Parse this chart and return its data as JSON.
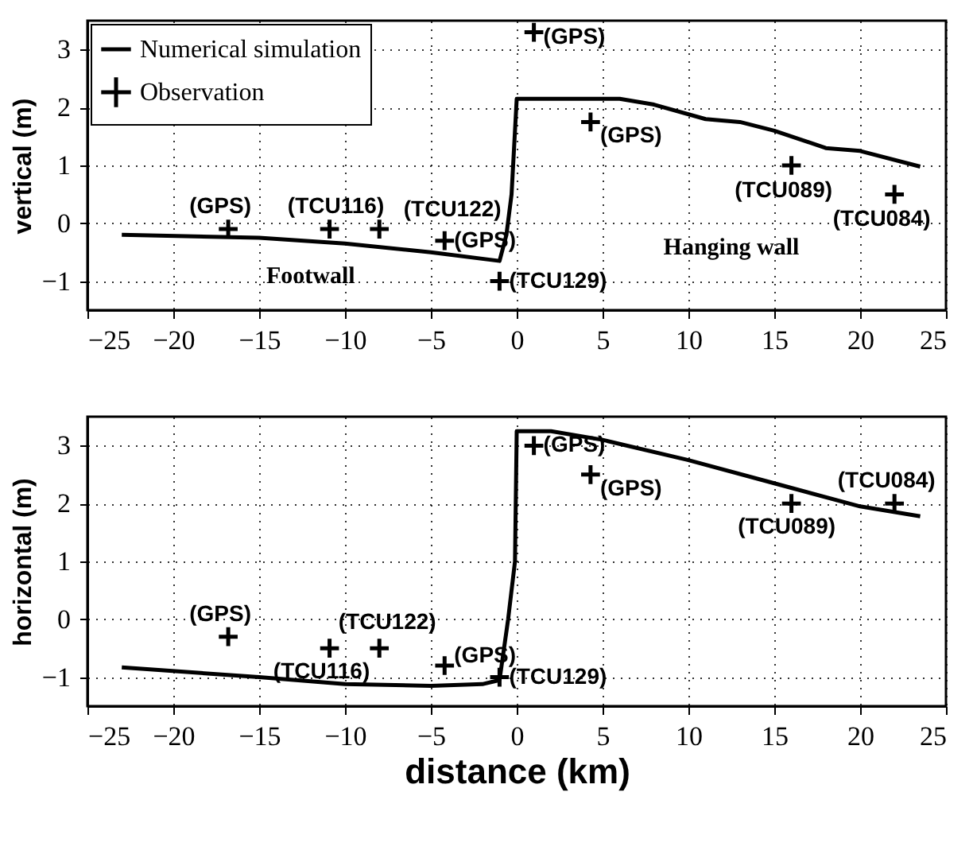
{
  "chart_data": [
    {
      "type": "line",
      "ylabel": "vertical (m)",
      "xlim": [
        -25,
        25
      ],
      "xticks": [
        -25,
        -20,
        -15,
        -10,
        -5,
        0,
        5,
        10,
        15,
        20,
        25
      ],
      "ylim": [
        -1.5,
        3.5
      ],
      "yticks": [
        -1,
        0,
        1,
        2,
        3
      ],
      "grid": true,
      "legend": "top left",
      "series": [
        {
          "name": "Numerical simulation",
          "color": "#000000",
          "x": [
            -23,
            -15,
            -10,
            -5,
            -1,
            -0.6,
            -0.3,
            0,
            2,
            6,
            8,
            11,
            13,
            15,
            18,
            20,
            23.5
          ],
          "values": [
            -0.2,
            -0.25,
            -0.35,
            -0.5,
            -0.65,
            -0.2,
            0.5,
            2.15,
            2.15,
            2.15,
            2.05,
            1.8,
            1.75,
            1.6,
            1.3,
            1.25,
            0.98
          ]
        },
        {
          "name": "Observation",
          "type": "scatter",
          "marker": "cross",
          "color": "#000000",
          "x": [
            -16.8,
            -10.9,
            -8,
            -4.2,
            -1,
            1,
            4.3,
            16,
            22
          ],
          "values": [
            -0.1,
            -0.1,
            -0.1,
            -0.3,
            -1,
            3.3,
            1.75,
            1,
            0.5
          ]
        }
      ],
      "annotations": [
        {
          "text": "(GPS)",
          "x": -16.8,
          "y": -0.1
        },
        {
          "text": "(TCU116)",
          "x": -10.9,
          "y": -0.1
        },
        {
          "text": "(TCU122)",
          "x": -8,
          "y": -0.1
        },
        {
          "text": "(GPS)",
          "x": -4.2,
          "y": -0.3
        },
        {
          "text": "(TCU129)",
          "x": -1,
          "y": -1
        },
        {
          "text": "(GPS)",
          "x": 1,
          "y": 3.3
        },
        {
          "text": "(GPS)",
          "x": 4.3,
          "y": 1.75
        },
        {
          "text": "(TCU089)",
          "x": 16,
          "y": 1
        },
        {
          "text": "(TCU084)",
          "x": 22,
          "y": 0.5
        },
        "Footwall",
        "Hanging wall"
      ]
    },
    {
      "type": "line",
      "ylabel": "horizontal (m)",
      "xlabel": "distance (km)",
      "xlim": [
        -25,
        25
      ],
      "xticks": [
        -25,
        -20,
        -15,
        -10,
        -5,
        0,
        5,
        10,
        15,
        20,
        25
      ],
      "ylim": [
        -1.5,
        3.5
      ],
      "yticks": [
        -1,
        0,
        1,
        2,
        3
      ],
      "grid": true,
      "series": [
        {
          "color": "#000000",
          "x": [
            -23,
            -15,
            -10,
            -5,
            -2,
            -1,
            -0.5,
            -0.1,
            0,
            2,
            5,
            10,
            15,
            20,
            23.5
          ],
          "values": [
            -0.83,
            -1.0,
            -1.12,
            -1.15,
            -1.12,
            -1.05,
            0,
            1,
            3.25,
            3.25,
            3.1,
            2.75,
            2.35,
            1.95,
            1.78
          ]
        },
        {
          "type": "scatter",
          "marker": "cross",
          "color": "#000000",
          "x": [
            -16.8,
            -10.9,
            -8,
            -4.2,
            -1,
            1,
            4.3,
            16,
            22
          ],
          "values": [
            -0.3,
            -0.5,
            -0.5,
            -0.8,
            -1,
            3,
            2.5,
            2,
            2
          ]
        }
      ],
      "annotations": [
        {
          "text": "(GPS)",
          "x": -16.8,
          "y": -0.3
        },
        {
          "text": "(TCU116)",
          "x": -10.9,
          "y": -0.5
        },
        {
          "text": "(TCU122)",
          "x": -8,
          "y": -0.5
        },
        {
          "text": "(GPS)",
          "x": -4.2,
          "y": -0.8
        },
        {
          "text": "(TCU129)",
          "x": -1,
          "y": -1
        },
        {
          "text": "(GPS)",
          "x": 1,
          "y": 3
        },
        {
          "text": "(GPS)",
          "x": 4.3,
          "y": 2.5
        },
        {
          "text": "(TCU089)",
          "x": 16,
          "y": 2
        },
        {
          "text": "(TCU084)",
          "x": 22,
          "y": 2
        }
      ]
    }
  ]
}
